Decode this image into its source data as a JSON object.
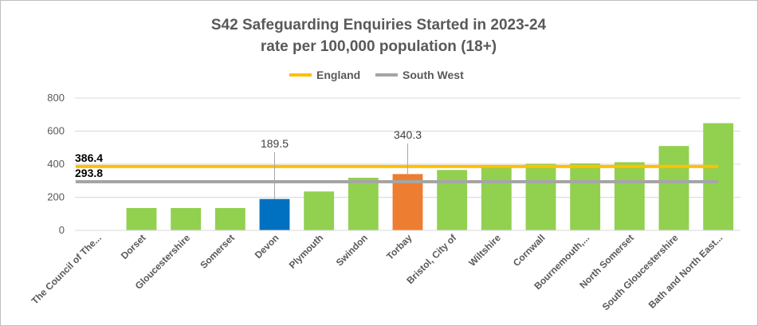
{
  "chart_data": {
    "type": "bar",
    "title": [
      "S42 Safeguarding Enquiries Started in 2023-24",
      "rate per 100,000 population (18+)"
    ],
    "ylim": [
      0,
      800
    ],
    "yticks": [
      0,
      200,
      400,
      600,
      800
    ],
    "grid": true,
    "legend_position": "top-center",
    "categories": [
      "The Council of The...",
      "Dorset",
      "Gloucestershire",
      "Somerset",
      "Devon",
      "Plymouth",
      "Swindon",
      "Torbay",
      "Bristol, City of",
      "Wiltshire",
      "Cornwall",
      "Bournemouth,...",
      "North Somerset",
      "South Gloucestershire",
      "Bath and North East..."
    ],
    "values": [
      0,
      135,
      135,
      135,
      189.5,
      235,
      318,
      340.3,
      365,
      385,
      403,
      405,
      412,
      510,
      648
    ],
    "bar_colors": [
      "#92D050",
      "#92D050",
      "#92D050",
      "#92D050",
      "#0070C0",
      "#92D050",
      "#92D050",
      "#ED7D31",
      "#92D050",
      "#92D050",
      "#92D050",
      "#92D050",
      "#92D050",
      "#92D050",
      "#92D050"
    ],
    "data_labels": [
      {
        "category_index": 4,
        "text": "189.5"
      },
      {
        "category_index": 7,
        "text": "340.3"
      }
    ],
    "reference_lines": [
      {
        "name": "England",
        "value": 386.4,
        "label": "386.4",
        "color": "#FFC000"
      },
      {
        "name": "South West",
        "value": 293.8,
        "label": "293.8",
        "color": "#A5A5A5"
      }
    ]
  }
}
